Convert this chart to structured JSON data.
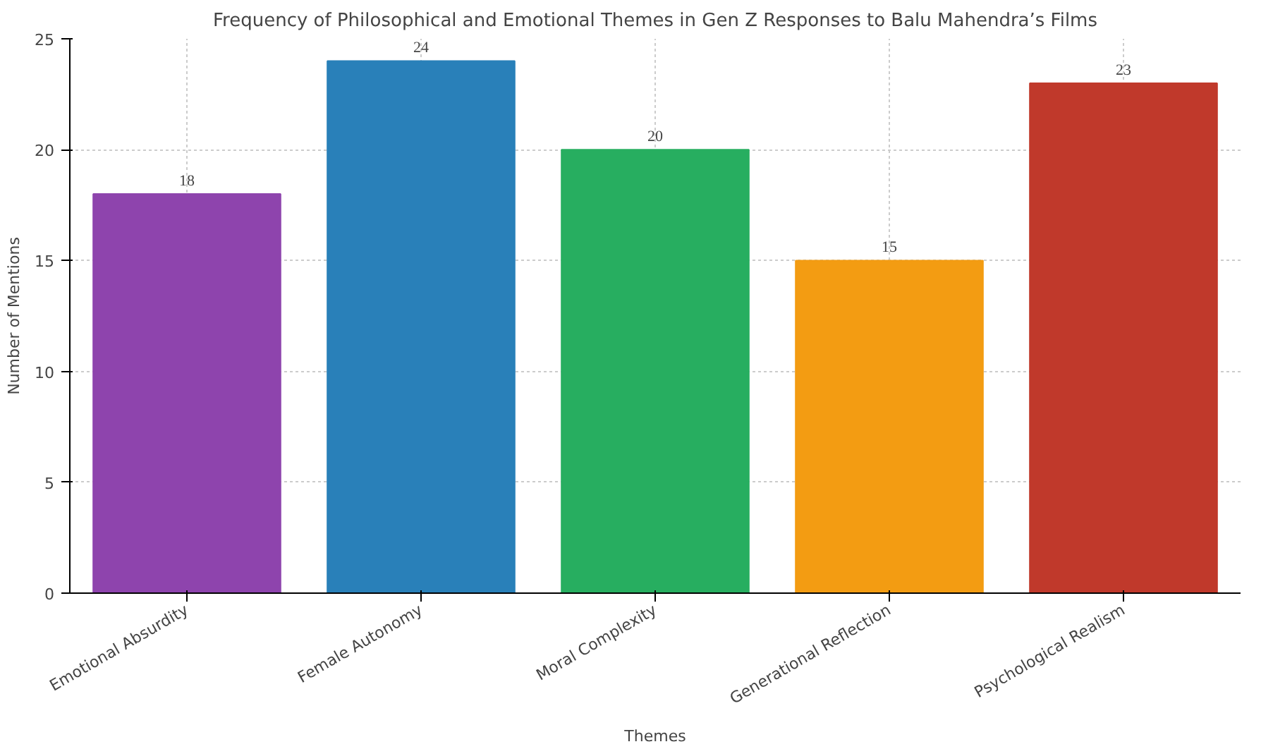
{
  "chart_data": {
    "type": "bar",
    "title": "Frequency of Philosophical and Emotional Themes in Gen Z Responses to Balu Mahendra’s Films",
    "xlabel": "Themes",
    "ylabel": "Number of Mentions",
    "categories": [
      "Emotional Absurdity",
      "Female Autonomy",
      "Moral Complexity",
      "Generational Reflection",
      "Psychological Realism"
    ],
    "values": [
      18,
      24,
      20,
      15,
      23
    ],
    "colors": [
      "#8e44ad",
      "#2980b9",
      "#27ae60",
      "#f39c12",
      "#c0392b"
    ],
    "ylim": [
      0,
      25
    ],
    "yticks": [
      0,
      5,
      10,
      15,
      20,
      25
    ],
    "grid": true,
    "data_labels": true
  }
}
